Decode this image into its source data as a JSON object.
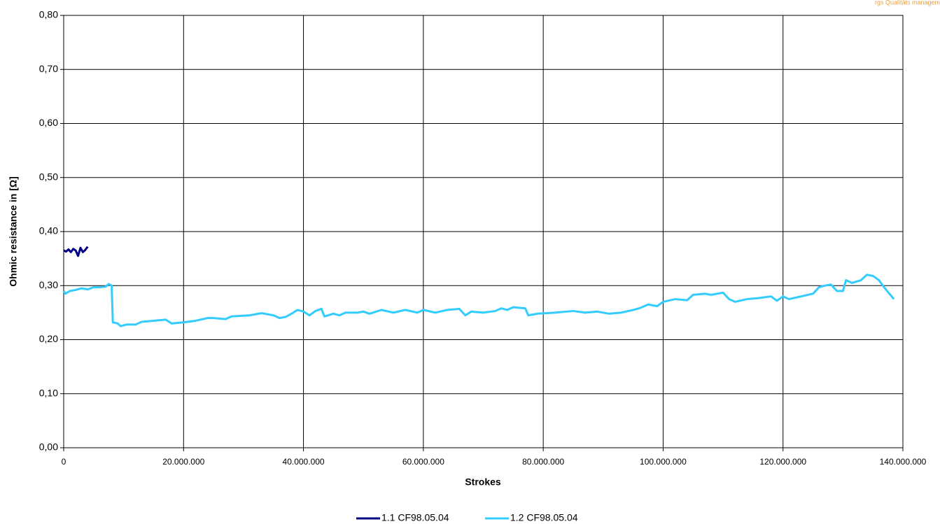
{
  "chart_data": {
    "type": "line",
    "watermark": "rgs Qualitäts management",
    "xlabel": "Strokes",
    "ylabel": "Ohmic resistance in [Ω]",
    "xlim": [
      0,
      140000000
    ],
    "ylim": [
      0,
      0.8
    ],
    "xticks": [
      0,
      {
        "value": 20000000,
        "label": "20.000.000"
      },
      {
        "value": 40000000,
        "label": "40.000.000"
      },
      {
        "value": 60000000,
        "label": "60.000.000"
      },
      {
        "value": 80000000,
        "label": "80.000.000"
      },
      {
        "value": 100000000,
        "label": "100.000.000"
      },
      {
        "value": 120000000,
        "label": "120.000.000"
      },
      {
        "value": 140000000,
        "label": "140.000.000"
      }
    ],
    "yticks": [
      {
        "value": 0,
        "label": "0,00"
      },
      {
        "value": 0.1,
        "label": "0,10"
      },
      {
        "value": 0.2,
        "label": "0,20"
      },
      {
        "value": 0.3,
        "label": "0,30"
      },
      {
        "value": 0.4,
        "label": "0,40"
      },
      {
        "value": 0.5,
        "label": "0,50"
      },
      {
        "value": 0.6,
        "label": "0,60"
      },
      {
        "value": 0.7,
        "label": "0,70"
      },
      {
        "value": 0.8,
        "label": "0,80"
      }
    ],
    "grid": true,
    "legend": "bottom",
    "series": [
      {
        "name": "1.1 CF98.05.04",
        "color": "#000080",
        "x": [
          0,
          400000,
          800000,
          1200000,
          1600000,
          2000000,
          2400000,
          2800000,
          3200000,
          3600000,
          4000000
        ],
        "values": [
          0.365,
          0.363,
          0.367,
          0.362,
          0.368,
          0.365,
          0.355,
          0.37,
          0.362,
          0.366,
          0.372
        ]
      },
      {
        "name": "1.2 CF98.05.04",
        "color": "#33ccff",
        "x": [
          0,
          300000,
          1000000,
          2000000,
          3000000,
          4000000,
          5000000,
          6000000,
          7000000,
          7500000,
          8000000,
          8200000,
          9000000,
          9500000,
          10500000,
          12000000,
          13000000,
          15000000,
          17000000,
          18000000,
          20000000,
          22000000,
          24000000,
          25000000,
          27000000,
          28000000,
          31000000,
          33000000,
          35000000,
          36000000,
          37000000,
          38000000,
          39000000,
          40000000,
          41000000,
          42000000,
          43000000,
          43500000,
          45000000,
          46000000,
          47000000,
          49000000,
          50000000,
          51000000,
          53000000,
          55000000,
          57000000,
          59000000,
          60000000,
          62000000,
          64000000,
          66000000,
          67000000,
          68000000,
          70000000,
          72000000,
          73000000,
          74000000,
          75000000,
          77000000,
          77500000,
          79000000,
          82000000,
          85000000,
          87000000,
          89000000,
          91000000,
          93000000,
          95000000,
          96000000,
          97500000,
          99000000,
          100000000,
          102000000,
          104000000,
          105000000,
          107000000,
          108000000,
          110000000,
          111000000,
          112000000,
          114000000,
          116000000,
          118000000,
          119000000,
          120000000,
          121000000,
          123000000,
          125000000,
          126000000,
          127000000,
          128000000,
          129000000,
          130000000,
          130500000,
          131500000,
          133000000,
          134000000,
          135000000,
          136000000,
          137000000,
          138500000
        ],
        "values": [
          0.29,
          0.285,
          0.29,
          0.292,
          0.295,
          0.293,
          0.297,
          0.297,
          0.298,
          0.303,
          0.3,
          0.232,
          0.23,
          0.225,
          0.228,
          0.228,
          0.233,
          0.235,
          0.237,
          0.23,
          0.232,
          0.235,
          0.24,
          0.24,
          0.238,
          0.243,
          0.245,
          0.249,
          0.245,
          0.24,
          0.242,
          0.248,
          0.255,
          0.252,
          0.245,
          0.253,
          0.257,
          0.243,
          0.248,
          0.245,
          0.25,
          0.25,
          0.252,
          0.248,
          0.255,
          0.25,
          0.255,
          0.25,
          0.255,
          0.25,
          0.255,
          0.257,
          0.245,
          0.252,
          0.25,
          0.253,
          0.258,
          0.255,
          0.26,
          0.258,
          0.245,
          0.248,
          0.25,
          0.253,
          0.25,
          0.252,
          0.248,
          0.25,
          0.255,
          0.258,
          0.265,
          0.262,
          0.27,
          0.275,
          0.273,
          0.283,
          0.285,
          0.283,
          0.287,
          0.275,
          0.27,
          0.275,
          0.277,
          0.28,
          0.272,
          0.28,
          0.275,
          0.28,
          0.285,
          0.297,
          0.3,
          0.302,
          0.29,
          0.29,
          0.31,
          0.305,
          0.31,
          0.32,
          0.318,
          0.31,
          0.295,
          0.275
        ]
      }
    ]
  }
}
